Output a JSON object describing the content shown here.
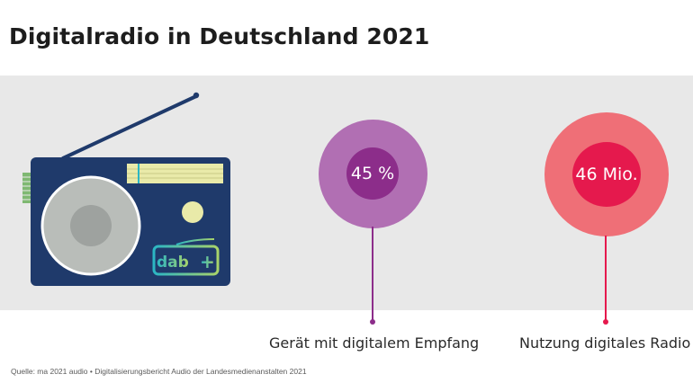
{
  "title": "Digitalradio in Deutschland 2021",
  "logo_text": "dab+",
  "stats": [
    {
      "value": "45 %",
      "label": "Gerät mit digitalem Empfang",
      "outer_color": "#b16fb3",
      "inner_color": "#8c2d8a"
    },
    {
      "value": "46 Mio.",
      "label": "Nutzung digitales Radio",
      "outer_color": "#ef6f77",
      "inner_color": "#e5194d"
    }
  ],
  "colors": {
    "band": "#e8e8e8",
    "radio_body": "#1f3a6b",
    "speaker_outer": "#b9bdb9",
    "speaker_inner": "#9ea29f",
    "tuner": "#e9eaa9",
    "logo_gradient_start": "#2bb6c4",
    "logo_gradient_end": "#a8d36a"
  },
  "source": "Quelle: ma 2021 audio • Digitalisierungsbericht Audio der Landesmedienanstalten 2021"
}
